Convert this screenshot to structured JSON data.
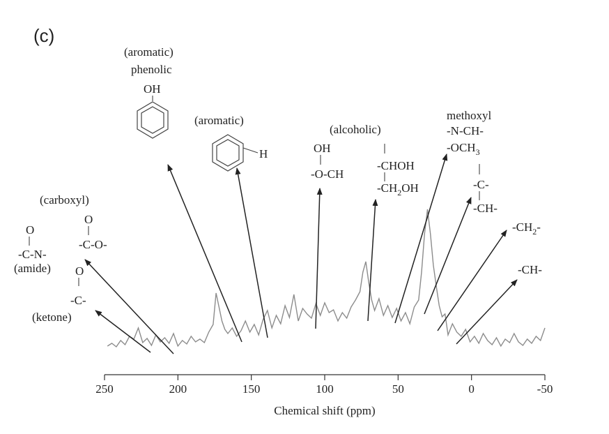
{
  "panel_label": "(c)",
  "chart_data": {
    "type": "line",
    "xlabel": "Chemical shift (ppm)",
    "ylabel": "",
    "xlim": [
      250,
      -50
    ],
    "x_reversed": true,
    "xticks": [
      250,
      200,
      150,
      100,
      50,
      0,
      -50
    ],
    "y_axis_shown": false,
    "grid": false,
    "series": [
      {
        "color": "#8c8c8c",
        "x": [
          248,
          245,
          242,
          239,
          236,
          233,
          230,
          227,
          224,
          221,
          218,
          215,
          212,
          209,
          206,
          203,
          200,
          197,
          194,
          191,
          188,
          185,
          182,
          179,
          176,
          174,
          172,
          170,
          168,
          166,
          163,
          160,
          157,
          154,
          151,
          148,
          145,
          142,
          139,
          136,
          133,
          130,
          127,
          124,
          121,
          118,
          115,
          112,
          109,
          106,
          103,
          100,
          97,
          94,
          91,
          88,
          85,
          82,
          79,
          76,
          74,
          72,
          70,
          68,
          66,
          63,
          60,
          57,
          54,
          51,
          48,
          45,
          42,
          39,
          36,
          34,
          32,
          30,
          28,
          26,
          24,
          22,
          20,
          18,
          16,
          13,
          10,
          7,
          4,
          1,
          -2,
          -5,
          -8,
          -11,
          -14,
          -17,
          -20,
          -23,
          -26,
          -29,
          -32,
          -35,
          -38,
          -41,
          -44,
          -47,
          -50
        ],
        "y": [
          4,
          8,
          3,
          12,
          6,
          18,
          14,
          30,
          9,
          15,
          5,
          20,
          10,
          16,
          8,
          22,
          4,
          12,
          7,
          18,
          10,
          14,
          9,
          24,
          35,
          80,
          60,
          40,
          28,
          22,
          30,
          18,
          26,
          40,
          24,
          35,
          20,
          42,
          55,
          30,
          48,
          36,
          62,
          45,
          78,
          40,
          58,
          50,
          44,
          65,
          48,
          66,
          52,
          56,
          40,
          52,
          44,
          60,
          70,
          82,
          110,
          125,
          95,
          70,
          55,
          72,
          48,
          62,
          45,
          58,
          40,
          52,
          36,
          60,
          70,
          110,
          165,
          200,
          165,
          120,
          90,
          62,
          46,
          50,
          20,
          36,
          24,
          18,
          28,
          10,
          18,
          8,
          22,
          12,
          6,
          16,
          4,
          14,
          9,
          22,
          10,
          5,
          14,
          8,
          18,
          12,
          30
        ]
      }
    ],
    "annotations": [
      {
        "group": "panel",
        "lines": []
      },
      {
        "group": "amide",
        "text": [
          "O",
          "-C-N-",
          "(amide)"
        ]
      },
      {
        "group": "carboxyl",
        "text": [
          "(carboxyl)",
          "O",
          "-C-O-"
        ]
      },
      {
        "group": "ketone",
        "text": [
          "O",
          "-C-",
          "(ketone)"
        ]
      },
      {
        "group": "phenolic",
        "text": [
          "(aromatic)",
          "phenolic",
          "OH"
        ]
      },
      {
        "group": "aromatic",
        "text": [
          "(aromatic)",
          "H"
        ]
      },
      {
        "group": "oh-och",
        "text": [
          "OH",
          "-O-CH"
        ]
      },
      {
        "group": "alcoholic",
        "text": [
          "(alcoholic)",
          "-CHOH",
          "-CH2OH"
        ]
      },
      {
        "group": "methoxyl",
        "text": [
          "methoxyl",
          "-N-CH-",
          "-OCH3",
          "-C-",
          "-CH-"
        ]
      },
      {
        "group": "ch2",
        "text": [
          "-CH2-"
        ]
      },
      {
        "group": "ch",
        "text": [
          "-CH-"
        ]
      }
    ]
  },
  "labels": {
    "amide_o": "O",
    "amide": "-C-N-",
    "amide_name": "(amide)",
    "carboxyl_name": "(carboxyl)",
    "carboxyl_o": "O",
    "carboxyl": "-C-O-",
    "ketone_o": "O",
    "ketone": "-C-",
    "ketone_name": "(ketone)",
    "phenolic_arom": "(aromatic)",
    "phenolic_name": "phenolic",
    "phenolic_oh": "OH",
    "aromatic_name": "(aromatic)",
    "aromatic_h": "H",
    "oh": "OH",
    "och": "-O-CH",
    "alcoholic_name": "(alcoholic)",
    "chohh": "-CHOH",
    "ch2oh_a": "-CH",
    "ch2oh_sub": "2",
    "ch2oh_b": "OH",
    "methoxyl_name": "methoxyl",
    "nch": "-N-CH-",
    "och3_a": "-OCH",
    "och3_sub": "3",
    "c": "-C-",
    "ch_a": "-CH-",
    "ch2_a": "-CH",
    "ch2_sub": "2",
    "ch2_b": "-",
    "ch_b": "-CH-"
  }
}
